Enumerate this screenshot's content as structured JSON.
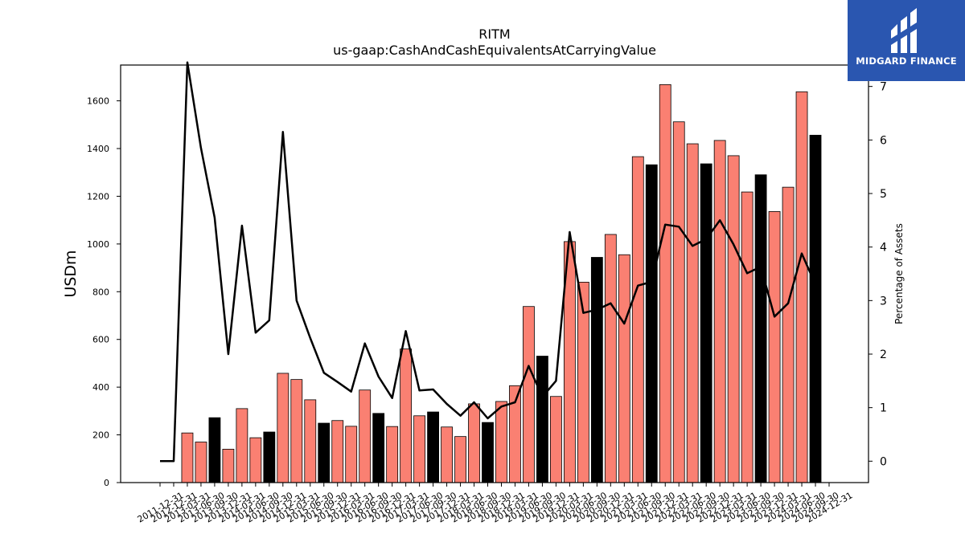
{
  "chart_data": {
    "type": "bar+line",
    "title": "RITM",
    "subtitle": "us-gaap:CashAndCashEquivalentsAtCarryingValue",
    "ylabel_left": "USDm",
    "ylabel_right": "Percentage of Assets",
    "ylim_left": [
      0,
      1750
    ],
    "ylim_right": [
      -0.4,
      7.4
    ],
    "yticks_left": [
      0,
      200,
      400,
      600,
      800,
      1000,
      1200,
      1400,
      1600
    ],
    "yticks_right": [
      0,
      1,
      2,
      3,
      4,
      5,
      6,
      7
    ],
    "grid": false,
    "bar_colors": {
      "quarter": "#fa8072",
      "year_end": "#000000"
    },
    "line_color": "#000000",
    "categories": [
      "2011-12-31",
      "2012-12-31",
      "2013-03-31",
      "2013-06-30",
      "2013-09-30",
      "2013-12-31",
      "2014-03-31",
      "2014-06-30",
      "2014-09-30",
      "2014-12-31",
      "2015-03-31",
      "2015-06-30",
      "2015-09-30",
      "2015-12-31",
      "2016-03-31",
      "2016-06-30",
      "2016-09-30",
      "2016-12-31",
      "2017-03-31",
      "2017-06-30",
      "2017-09-30",
      "2017-12-31",
      "2018-03-31",
      "2018-06-30",
      "2018-09-30",
      "2018-12-31",
      "2019-03-31",
      "2019-06-30",
      "2019-09-30",
      "2019-12-31",
      "2020-03-31",
      "2020-06-30",
      "2020-09-30",
      "2020-12-31",
      "2021-03-31",
      "2021-06-30",
      "2021-09-30",
      "2021-12-31",
      "2022-03-31",
      "2022-06-30",
      "2022-09-30",
      "2022-12-31",
      "2023-03-31",
      "2023-06-30",
      "2023-09-30",
      "2023-12-31",
      "2024-03-31",
      "2024-06-30",
      "2024-09-30",
      "2024-12-31"
    ],
    "bars": [
      null,
      null,
      208,
      170,
      272,
      140,
      310,
      188,
      212,
      458,
      432,
      347,
      249,
      260,
      236,
      388,
      290,
      235,
      560,
      280,
      296,
      233,
      193,
      330,
      252,
      340,
      406,
      738,
      530,
      361,
      1010,
      840,
      944,
      1040,
      955,
      1366,
      1332,
      1668,
      1512,
      1420,
      1336,
      1434,
      1370,
      1218,
      1290,
      1136,
      1238,
      1638,
      1456,
      null
    ],
    "year_end": [
      false,
      false,
      false,
      false,
      true,
      false,
      false,
      false,
      true,
      false,
      false,
      false,
      true,
      false,
      false,
      false,
      true,
      false,
      false,
      false,
      true,
      false,
      false,
      false,
      true,
      false,
      false,
      false,
      true,
      false,
      false,
      false,
      true,
      false,
      false,
      false,
      true,
      false,
      false,
      false,
      true,
      false,
      false,
      false,
      true,
      false,
      false,
      false,
      true,
      false
    ],
    "line": [
      0.0,
      0.0,
      7.45,
      5.85,
      4.55,
      2.0,
      4.4,
      2.4,
      2.63,
      6.15,
      3.0,
      2.3,
      1.65,
      1.48,
      1.3,
      2.2,
      1.58,
      1.18,
      2.43,
      1.32,
      1.34,
      1.07,
      0.85,
      1.1,
      0.8,
      1.02,
      1.1,
      1.78,
      1.2,
      1.5,
      4.28,
      2.77,
      2.83,
      2.95,
      2.57,
      3.28,
      3.35,
      4.42,
      4.38,
      4.02,
      4.15,
      4.5,
      4.05,
      3.51,
      3.63,
      2.7,
      2.95,
      3.88,
      3.3,
      null
    ]
  },
  "branding": {
    "logo_text": "MIDGARD FINANCE",
    "logo_color": "#2a56b0"
  }
}
